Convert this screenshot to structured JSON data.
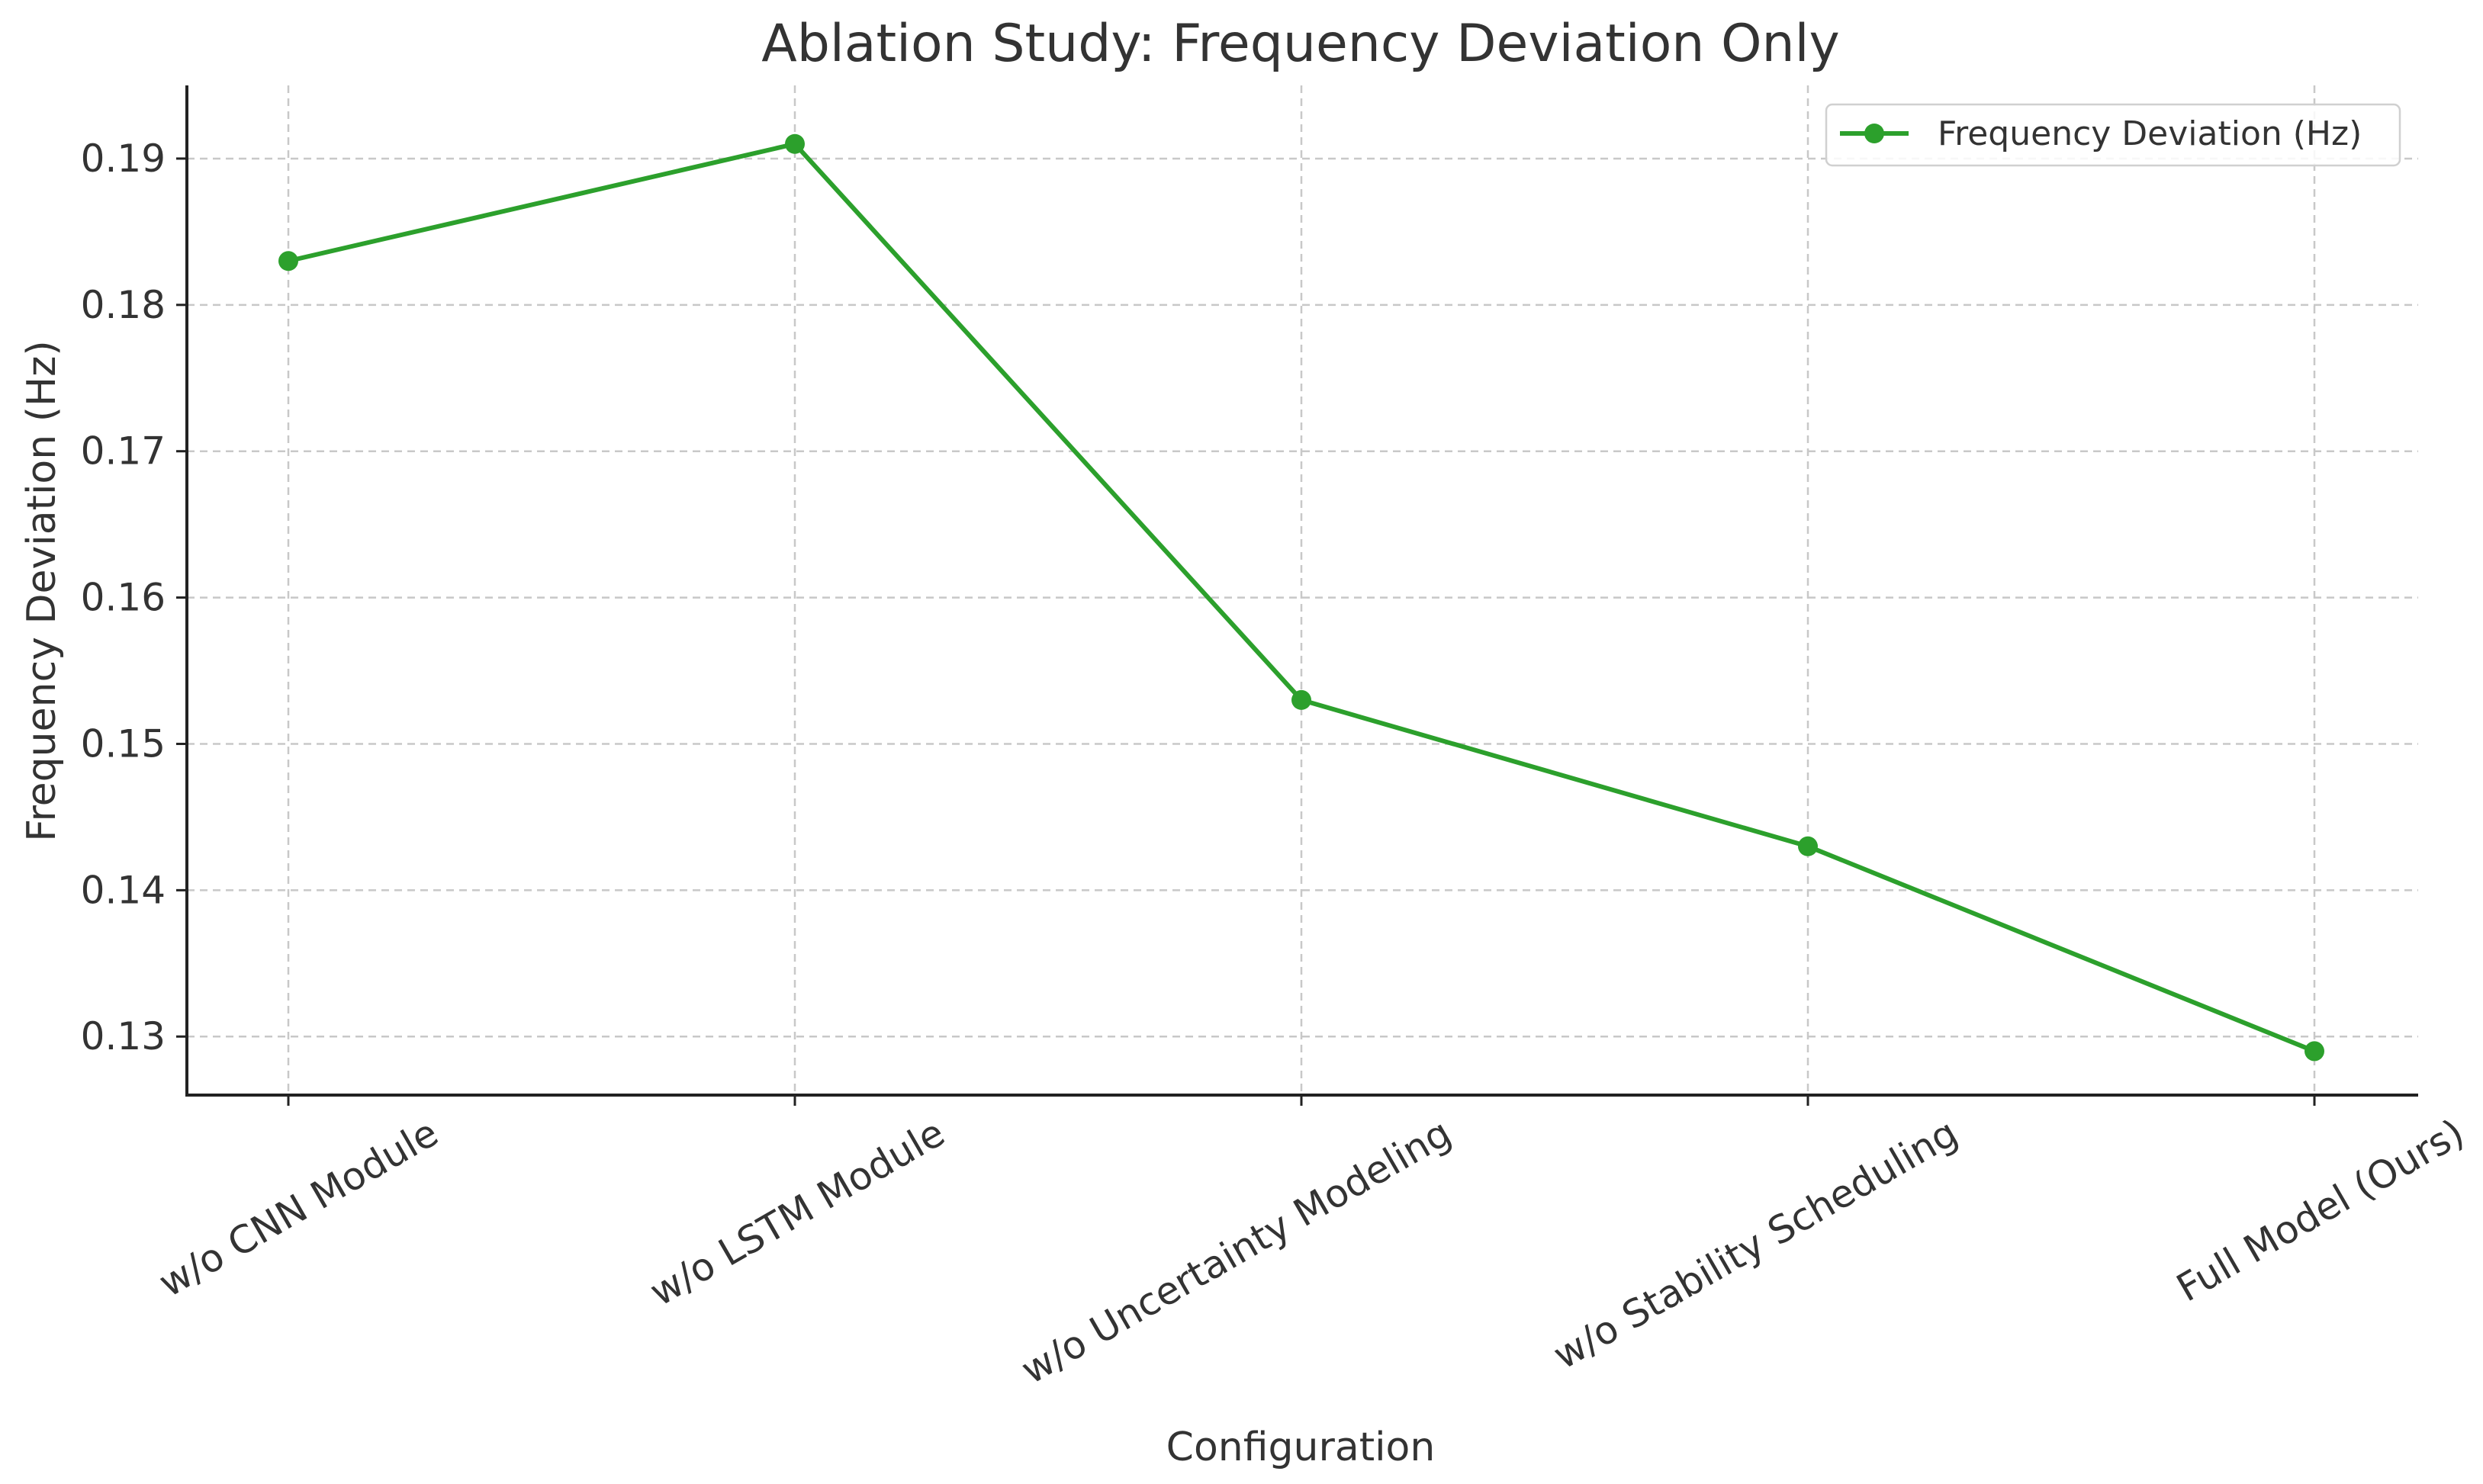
{
  "chart_data": {
    "type": "line",
    "title": "Ablation Study: Frequency Deviation Only",
    "xlabel": "Configuration",
    "ylabel": "Frequency Deviation (Hz)",
    "categories": [
      "w/o CNN Module",
      "w/o LSTM Module",
      "w/o Uncertainty Modeling",
      "w/o Stability Scheduling",
      "Full Model (Ours)"
    ],
    "series": [
      {
        "name": "Frequency Deviation (Hz)",
        "color": "#2ca02c",
        "values": [
          0.183,
          0.191,
          0.153,
          0.143,
          0.129
        ]
      }
    ],
    "ylim": [
      0.126,
      0.195
    ],
    "yticks": [
      0.13,
      0.14,
      0.15,
      0.16,
      0.17,
      0.18,
      0.19
    ],
    "ytick_labels": [
      "0.13",
      "0.14",
      "0.15",
      "0.16",
      "0.17",
      "0.18",
      "0.19"
    ],
    "grid": true,
    "legend_position": "top-right"
  }
}
